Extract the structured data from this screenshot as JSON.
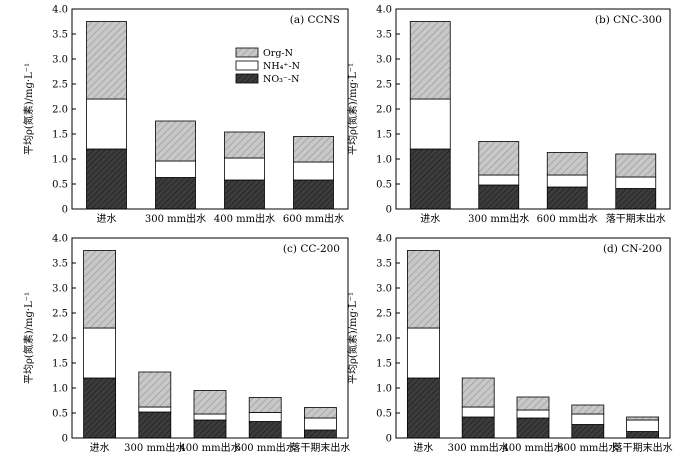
{
  "y_axis_label": "平均ρ(氮素)/mg·L⁻¹",
  "legend": [
    {
      "name": "Org-N",
      "pattern": "hatch-light"
    },
    {
      "name": "NH₄⁺-N",
      "pattern": "white"
    },
    {
      "name": "NO₃⁻-N",
      "pattern": "hatch-dark"
    }
  ],
  "colors": {
    "light_fill": "#c8c8c8",
    "dark_fill": "#3c3c3c",
    "stroke": "#000000"
  },
  "chart_data": [
    {
      "type": "bar",
      "stacked": true,
      "title": "(a) CCNS",
      "ylabel": "平均ρ(氮素)/mg·L⁻¹",
      "ylim": [
        0,
        4.0
      ],
      "yticks": [
        "0",
        "0.5",
        "1.0",
        "1.5",
        "2.0",
        "2.5",
        "3.0",
        "3.5",
        "4.0"
      ],
      "categories": [
        "进水",
        "300 mm出水",
        "400 mm出水",
        "600 mm出水"
      ],
      "legend_position": "top-center",
      "series": [
        {
          "name": "NO₃⁻-N",
          "values": [
            1.2,
            0.63,
            0.58,
            0.58
          ]
        },
        {
          "name": "NH₄⁺-N",
          "values": [
            1.0,
            0.33,
            0.44,
            0.36
          ]
        },
        {
          "name": "Org-N",
          "values": [
            1.55,
            0.8,
            0.52,
            0.51
          ]
        }
      ]
    },
    {
      "type": "bar",
      "stacked": true,
      "title": "(b) CNC-300",
      "ylabel": "平均ρ(氮素)/mg·L⁻¹",
      "ylim": [
        0,
        4.0
      ],
      "yticks": [
        "0",
        "0.5",
        "1.0",
        "1.5",
        "2.0",
        "2.5",
        "3.0",
        "3.5",
        "4.0"
      ],
      "categories": [
        "进水",
        "300 mm出水",
        "600 mm出水",
        "落干期末出水"
      ],
      "series": [
        {
          "name": "NO₃⁻-N",
          "values": [
            1.2,
            0.48,
            0.44,
            0.41
          ]
        },
        {
          "name": "NH₄⁺-N",
          "values": [
            1.0,
            0.2,
            0.24,
            0.23
          ]
        },
        {
          "name": "Org-N",
          "values": [
            1.55,
            0.67,
            0.45,
            0.46
          ]
        }
      ]
    },
    {
      "type": "bar",
      "stacked": true,
      "title": "(c) CC-200",
      "ylabel": "平均ρ(氮素)/mg·L⁻¹",
      "ylim": [
        0,
        4.0
      ],
      "yticks": [
        "0",
        "0.5",
        "1.0",
        "1.5",
        "2.0",
        "2.5",
        "3.0",
        "3.5",
        "4.0"
      ],
      "categories": [
        "进水",
        "300 mm出水",
        "400 mm出水",
        "600 mm出水",
        "落干期末出水"
      ],
      "series": [
        {
          "name": "NO₃⁻-N",
          "values": [
            1.2,
            0.52,
            0.36,
            0.33,
            0.16
          ]
        },
        {
          "name": "NH₄⁺-N",
          "values": [
            1.0,
            0.1,
            0.12,
            0.18,
            0.24
          ]
        },
        {
          "name": "Org-N",
          "values": [
            1.55,
            0.7,
            0.47,
            0.3,
            0.21
          ]
        }
      ]
    },
    {
      "type": "bar",
      "stacked": true,
      "title": "(d) CN-200",
      "ylabel": "平均ρ(氮素)/mg·L⁻¹",
      "ylim": [
        0,
        4.0
      ],
      "yticks": [
        "0",
        "0.5",
        "1.0",
        "1.5",
        "2.0",
        "2.5",
        "3.0",
        "3.5",
        "4.0"
      ],
      "categories": [
        "进水",
        "300 mm出水",
        "400 mm出水",
        "600 mm出水",
        "落干期末出水"
      ],
      "series": [
        {
          "name": "NO₃⁻-N",
          "values": [
            1.2,
            0.42,
            0.4,
            0.27,
            0.13
          ]
        },
        {
          "name": "NH₄⁺-N",
          "values": [
            1.0,
            0.2,
            0.16,
            0.21,
            0.23
          ]
        },
        {
          "name": "Org-N",
          "values": [
            1.55,
            0.58,
            0.26,
            0.18,
            0.06
          ]
        }
      ]
    }
  ]
}
